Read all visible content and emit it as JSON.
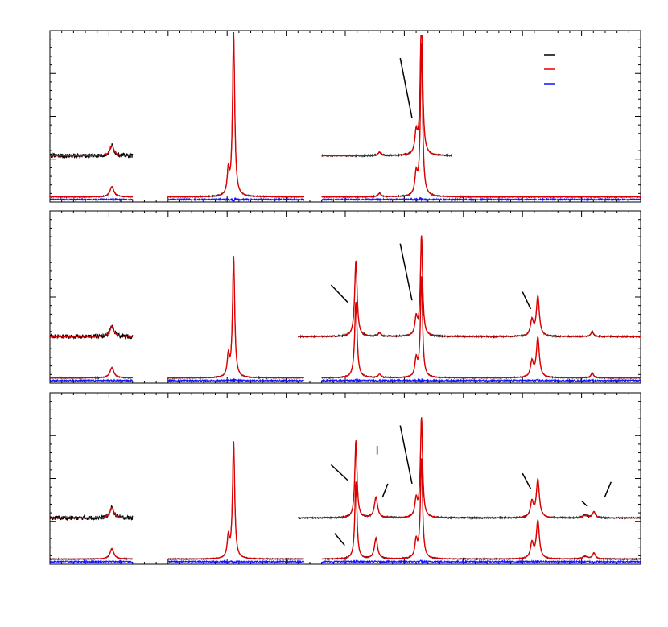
{
  "colors": {
    "data": "#000000",
    "fit": "#e00000",
    "residual": "#1010ff",
    "axis": "#000000"
  },
  "legend": {
    "placement": "top-right",
    "entries": [
      {
        "color_key": "data",
        "label": ""
      },
      {
        "color_key": "fit",
        "label": ""
      },
      {
        "color_key": "residual",
        "label": ""
      }
    ]
  },
  "chart_data": {
    "type": "line",
    "title": "",
    "xlabel": "",
    "ylabel": "",
    "tick_labels_shown": false,
    "xlim": [
      0,
      100
    ],
    "ylim": [
      0,
      1
    ],
    "segments": [
      [
        0,
        14
      ],
      [
        20,
        43
      ],
      [
        46,
        100
      ]
    ],
    "panels": [
      {
        "name": "panel-1",
        "main_range": [
          46,
          68
        ],
        "zoom_offset": 0.27,
        "zoom_factor": 0.4,
        "peaks": [
          {
            "x": 10.5,
            "h": 0.06,
            "w": 0.4
          },
          {
            "x": 30.2,
            "h": 0.14,
            "w": 0.22
          },
          {
            "x": 31.1,
            "h": 0.95,
            "w": 0.22
          },
          {
            "x": 55.8,
            "h": 0.02,
            "w": 0.3
          },
          {
            "x": 62.0,
            "h": 0.12,
            "w": 0.25
          },
          {
            "x": 62.9,
            "h": 0.89,
            "w": 0.22
          }
        ],
        "markers": [
          [
            59.3,
            0.84,
            61.3,
            0.49
          ]
        ]
      },
      {
        "name": "panel-2",
        "main_range": [
          42,
          100
        ],
        "zoom_offset": 0.27,
        "zoom_factor": 0.4,
        "peaks": [
          {
            "x": 10.5,
            "h": 0.06,
            "w": 0.4
          },
          {
            "x": 30.2,
            "h": 0.12,
            "w": 0.22
          },
          {
            "x": 31.1,
            "h": 0.7,
            "w": 0.22
          },
          {
            "x": 51.8,
            "h": 0.44,
            "w": 0.25
          },
          {
            "x": 55.8,
            "h": 0.02,
            "w": 0.3
          },
          {
            "x": 62.0,
            "h": 0.1,
            "w": 0.25
          },
          {
            "x": 62.9,
            "h": 0.58,
            "w": 0.22
          },
          {
            "x": 81.6,
            "h": 0.09,
            "w": 0.3
          },
          {
            "x": 82.6,
            "h": 0.23,
            "w": 0.3
          },
          {
            "x": 91.8,
            "h": 0.03,
            "w": 0.25
          }
        ],
        "markers": [
          [
            47.6,
            0.57,
            50.4,
            0.47
          ],
          [
            80.0,
            0.53,
            81.4,
            0.43
          ],
          [
            59.3,
            0.81,
            61.3,
            0.48
          ]
        ]
      },
      {
        "name": "panel-3",
        "main_range": [
          42,
          100
        ],
        "zoom_offset": 0.27,
        "zoom_factor": 0.4,
        "peaks": [
          {
            "x": 10.5,
            "h": 0.06,
            "w": 0.4
          },
          {
            "x": 30.2,
            "h": 0.12,
            "w": 0.22
          },
          {
            "x": 31.1,
            "h": 0.68,
            "w": 0.22
          },
          {
            "x": 51.8,
            "h": 0.45,
            "w": 0.22
          },
          {
            "x": 55.2,
            "h": 0.12,
            "w": 0.32
          },
          {
            "x": 62.0,
            "h": 0.1,
            "w": 0.25
          },
          {
            "x": 62.9,
            "h": 0.58,
            "w": 0.22
          },
          {
            "x": 81.6,
            "h": 0.09,
            "w": 0.3
          },
          {
            "x": 82.6,
            "h": 0.22,
            "w": 0.3
          },
          {
            "x": 90.6,
            "h": 0.015,
            "w": 0.5
          },
          {
            "x": 92.1,
            "h": 0.035,
            "w": 0.3
          }
        ],
        "markers": [
          [
            47.6,
            0.58,
            50.4,
            0.49
          ],
          [
            55.4,
            0.69,
            55.4,
            0.64
          ],
          [
            57.2,
            0.47,
            56.3,
            0.39
          ],
          [
            59.3,
            0.81,
            61.3,
            0.47
          ],
          [
            80.0,
            0.53,
            81.4,
            0.44
          ],
          [
            90.0,
            0.37,
            90.9,
            0.34
          ],
          [
            95.0,
            0.48,
            93.9,
            0.39
          ],
          [
            48.2,
            0.18,
            49.9,
            0.11
          ]
        ]
      }
    ]
  }
}
